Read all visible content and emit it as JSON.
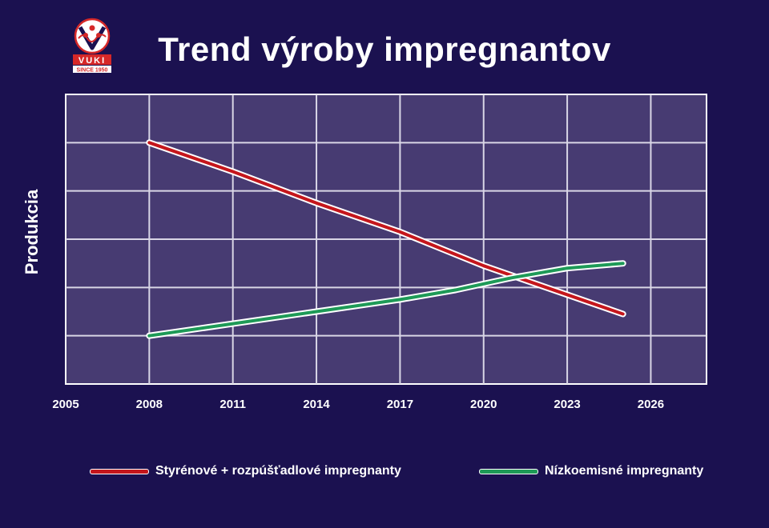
{
  "title": "Trend výroby impregnantov",
  "logo": {
    "text": "VUKI",
    "subtext": "SINCE 1950",
    "color_primary": "#d62828",
    "color_secondary": "#ffffff"
  },
  "colors": {
    "background": "#1b1150",
    "plot_background": "#473b72",
    "grid": "#d9d6e6",
    "series_red": "#c4161c",
    "series_green": "#1e9a57"
  },
  "chart_data": {
    "type": "line",
    "title": "Trend výroby impregnantov",
    "xlabel": "",
    "ylabel": "Produkcia",
    "xlim": [
      2005,
      2028
    ],
    "ylim": [
      0,
      6
    ],
    "xticks": [
      2005,
      2008,
      2011,
      2014,
      2017,
      2020,
      2023,
      2026
    ],
    "y_gridlines": [
      1,
      2,
      3,
      4,
      5
    ],
    "grid": true,
    "y_tick_labels_shown": false,
    "legend_position": "bottom",
    "series": [
      {
        "name": "Styrénové + rozpúšťadlové impregnanty",
        "color": "#c4161c",
        "x": [
          2008,
          2011,
          2014,
          2017,
          2018.5,
          2020,
          2022,
          2025
        ],
        "y": [
          5.0,
          4.4,
          3.75,
          3.15,
          2.8,
          2.45,
          2.05,
          1.45
        ]
      },
      {
        "name": "Nízkoemisné impregnanty",
        "color": "#1e9a57",
        "x": [
          2008,
          2011,
          2014,
          2017,
          2019,
          2021,
          2023,
          2025
        ],
        "y": [
          1.0,
          1.25,
          1.5,
          1.75,
          1.95,
          2.2,
          2.4,
          2.5
        ]
      }
    ]
  }
}
